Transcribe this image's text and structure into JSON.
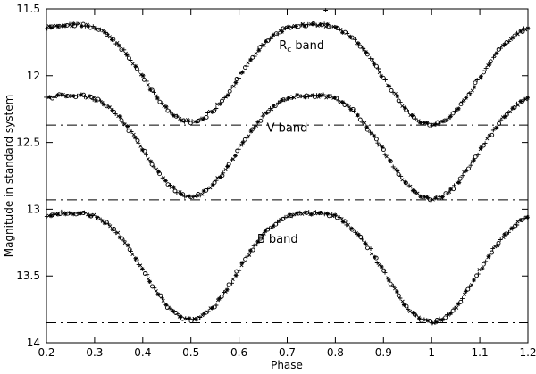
{
  "chart_data": {
    "type": "scatter",
    "title": "",
    "xlabel": "Phase",
    "ylabel": "Magnitude in standard system",
    "xlim": [
      0.2,
      1.2
    ],
    "ylim": [
      11.5,
      14
    ],
    "y_axis_inverted": true,
    "grid": false,
    "legend_position": "none",
    "marker_color": "#000000",
    "x_tick_values": [
      0.2,
      0.3,
      0.4,
      0.5,
      0.6,
      0.7,
      0.8,
      0.9,
      1.0,
      1.1,
      1.2
    ],
    "x_tick_labels": [
      "0.2",
      "0.3",
      "0.4",
      "0.5",
      "0.6",
      "0.7",
      "0.8",
      "0.9",
      "1",
      "1.1",
      "1.2"
    ],
    "y_tick_values": [
      11.5,
      12,
      12.5,
      13,
      13.5,
      14
    ],
    "y_tick_labels": [
      "11.5",
      "12",
      "12.5",
      "13",
      "13.5",
      "14"
    ],
    "phases": [
      0.2,
      0.225,
      0.25,
      0.275,
      0.3,
      0.325,
      0.35,
      0.375,
      0.4,
      0.425,
      0.45,
      0.475,
      0.5,
      0.525,
      0.55,
      0.575,
      0.6,
      0.625,
      0.65,
      0.675,
      0.7,
      0.725,
      0.75,
      0.775,
      0.8,
      0.825,
      0.85,
      0.875,
      0.9,
      0.925,
      0.95,
      0.975,
      1.0,
      1.025,
      1.05,
      1.075,
      1.1,
      1.125,
      1.15,
      1.175,
      1.2
    ],
    "series": [
      {
        "name": "Rc",
        "label_prefix": "R",
        "label_sub": "c",
        "label_suffix": " band",
        "label_x": 0.73,
        "label_y": 11.8,
        "max_magnitude": 11.62,
        "primary_minimum": 12.37,
        "secondary_minimum": 12.35,
        "y": [
          11.64,
          11.62,
          11.62,
          11.62,
          11.64,
          11.69,
          11.77,
          11.88,
          12.01,
          12.14,
          12.25,
          12.32,
          12.35,
          12.32,
          12.25,
          12.14,
          12.01,
          11.88,
          11.77,
          11.69,
          11.64,
          11.62,
          11.62,
          11.62,
          11.64,
          11.69,
          11.77,
          11.88,
          12.02,
          12.15,
          12.27,
          12.34,
          12.37,
          12.34,
          12.27,
          12.15,
          12.02,
          11.88,
          11.77,
          11.69,
          11.64
        ]
      },
      {
        "name": "V",
        "label_prefix": "V",
        "label_sub": "",
        "label_suffix": " band",
        "label_x": 0.7,
        "label_y": 12.42,
        "max_magnitude": 12.15,
        "primary_minimum": 12.93,
        "secondary_minimum": 12.91,
        "y": [
          12.17,
          12.15,
          12.15,
          12.15,
          12.17,
          12.22,
          12.3,
          12.42,
          12.55,
          12.69,
          12.8,
          12.88,
          12.91,
          12.88,
          12.8,
          12.69,
          12.55,
          12.42,
          12.3,
          12.22,
          12.17,
          12.15,
          12.15,
          12.15,
          12.17,
          12.22,
          12.31,
          12.43,
          12.56,
          12.7,
          12.82,
          12.9,
          12.93,
          12.9,
          12.82,
          12.7,
          12.56,
          12.43,
          12.31,
          12.22,
          12.17
        ]
      },
      {
        "name": "B",
        "label_prefix": "B",
        "label_sub": "",
        "label_suffix": " band",
        "label_x": 0.68,
        "label_y": 13.25,
        "max_magnitude": 13.03,
        "primary_minimum": 13.85,
        "secondary_minimum": 13.83,
        "y": [
          13.05,
          13.03,
          13.03,
          13.03,
          13.05,
          13.11,
          13.19,
          13.31,
          13.45,
          13.6,
          13.72,
          13.8,
          13.83,
          13.8,
          13.72,
          13.6,
          13.45,
          13.31,
          13.19,
          13.11,
          13.05,
          13.03,
          13.03,
          13.03,
          13.05,
          13.11,
          13.2,
          13.32,
          13.46,
          13.61,
          13.74,
          13.82,
          13.85,
          13.82,
          13.74,
          13.61,
          13.46,
          13.32,
          13.2,
          13.11,
          13.05
        ]
      }
    ],
    "reference_lines": [
      {
        "y": 12.37,
        "style": "dash-dot"
      },
      {
        "y": 12.93,
        "style": "dash-dot"
      },
      {
        "y": 13.85,
        "style": "dash-dot"
      }
    ],
    "outliers": [
      {
        "x": 0.78,
        "y": 11.51,
        "marker": "plus"
      }
    ]
  }
}
